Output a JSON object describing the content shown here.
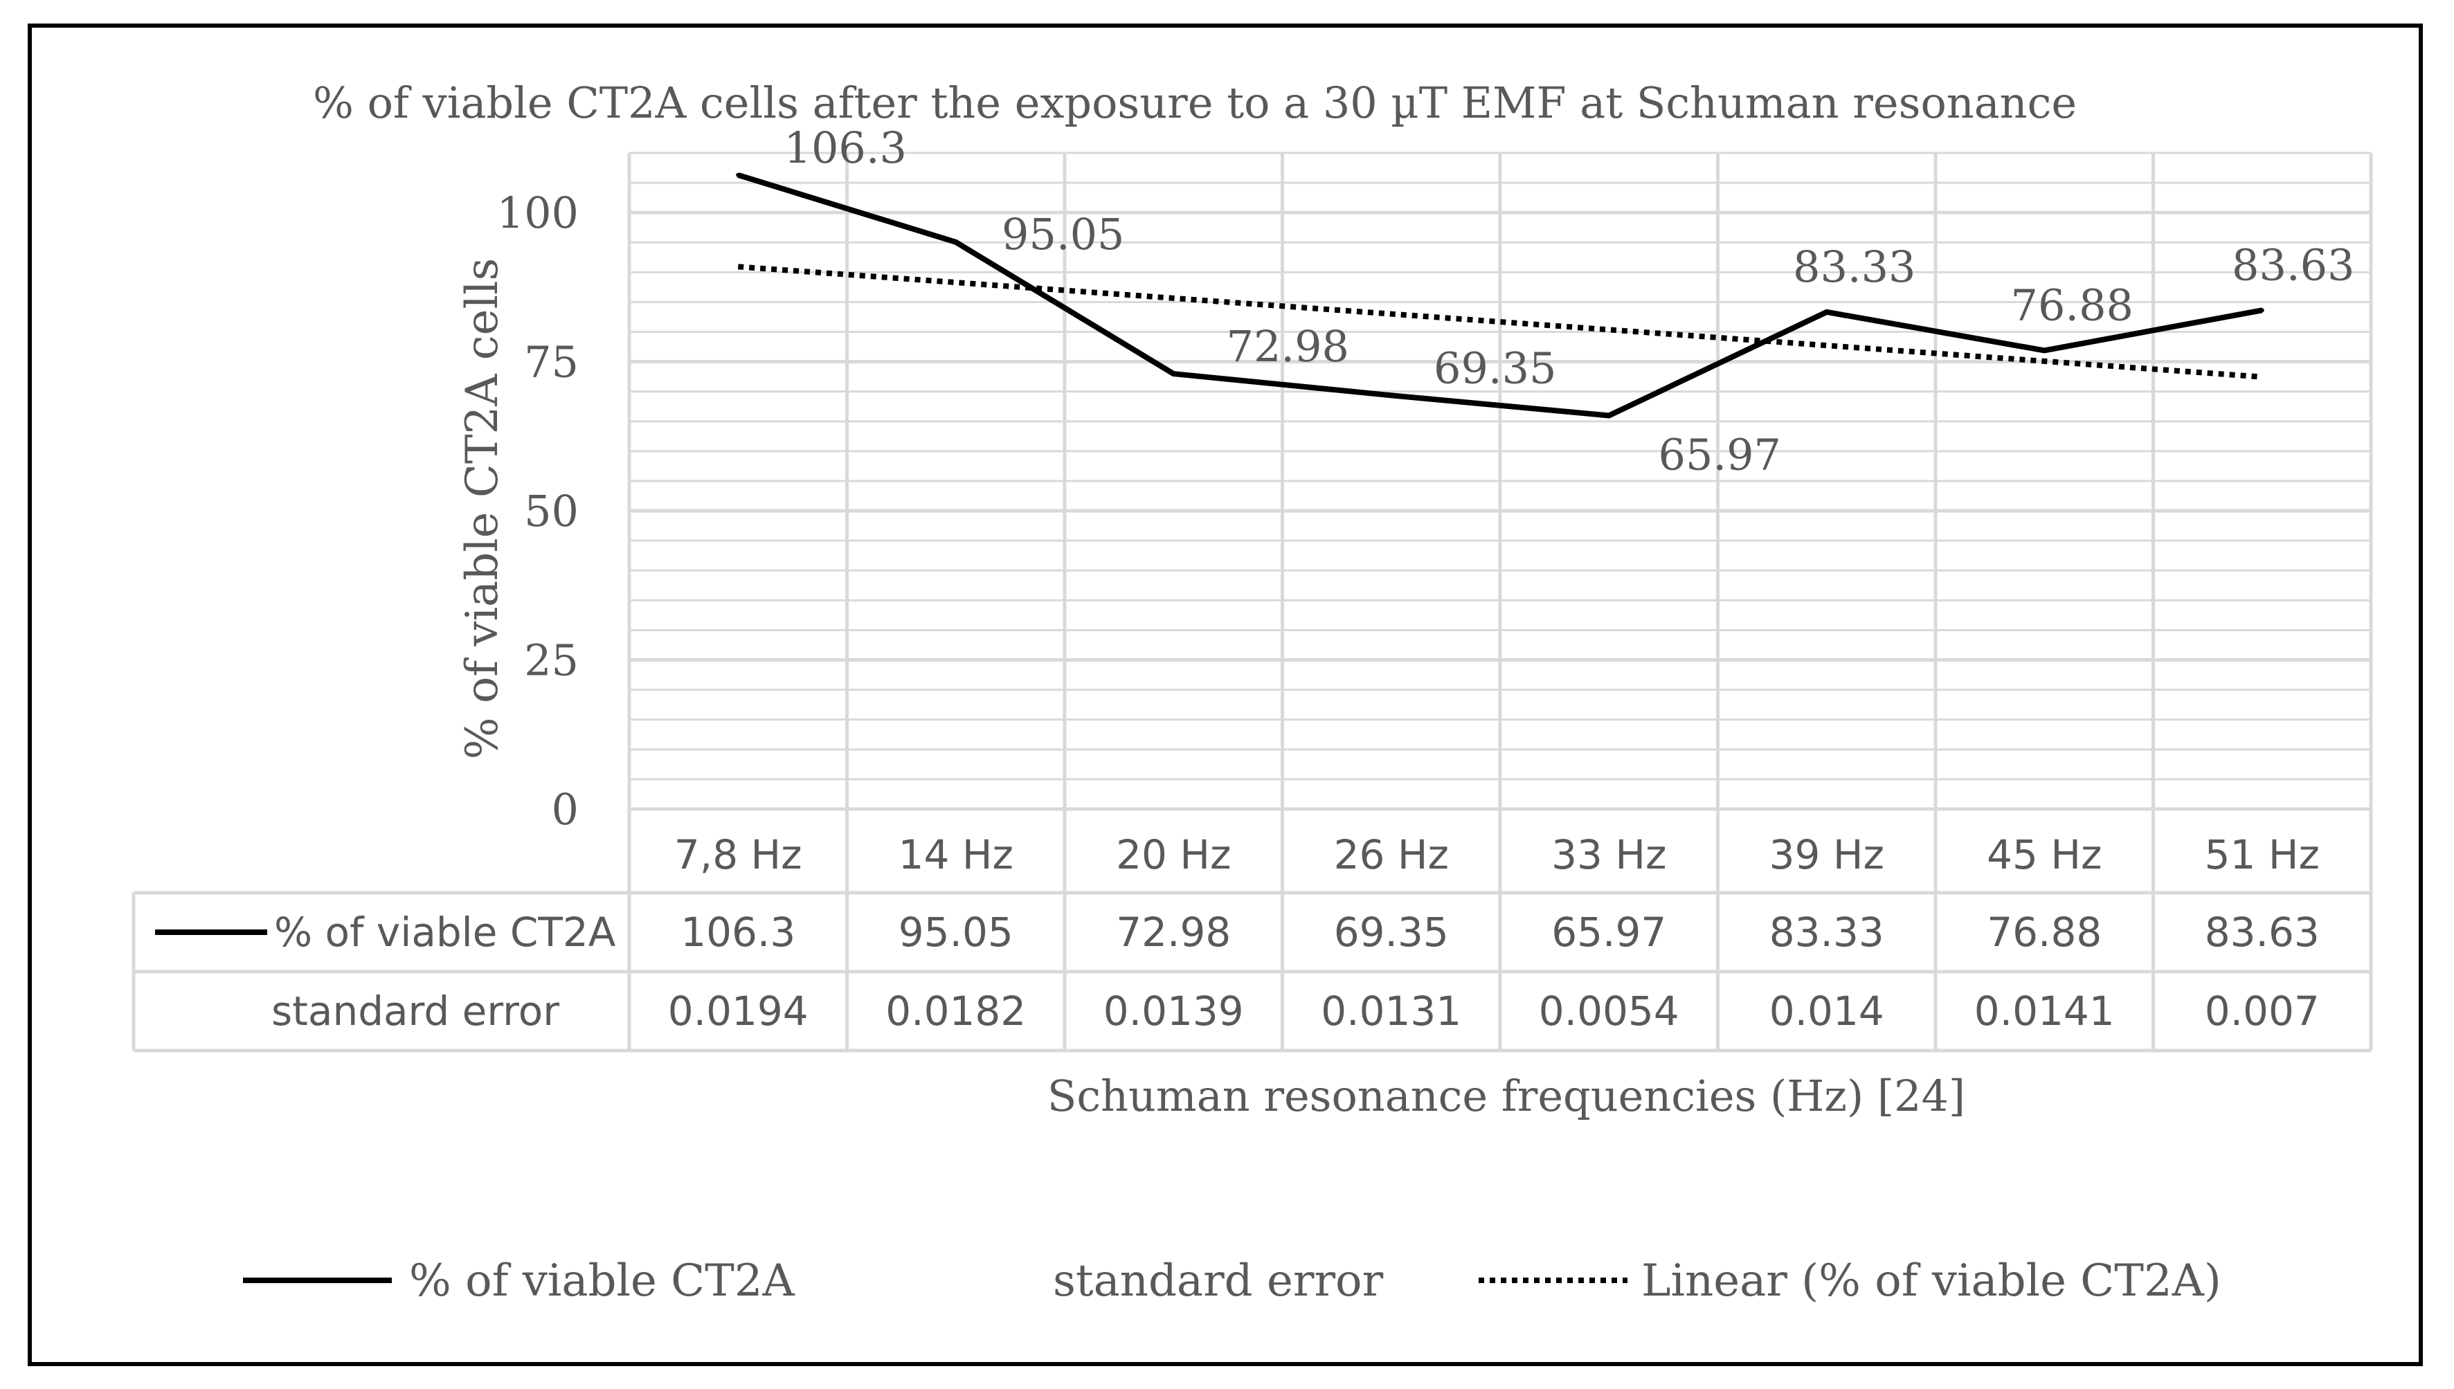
{
  "chart_data": {
    "type": "line",
    "title": "% of viable CT2A cells after the exposure to a 30 µT EMF at Schuman resonance",
    "xlabel": "Schuman resonance frequencies (Hz) [24]",
    "ylabel": "% of viable CT2A cells",
    "ylim": [
      0,
      110
    ],
    "yticks": [
      0,
      25,
      50,
      75,
      100
    ],
    "y_minor_step": 5,
    "categories": [
      "7,8 Hz",
      "14 Hz",
      "20 Hz",
      "26 Hz",
      "33 Hz",
      "39 Hz",
      "45 Hz",
      "51 Hz"
    ],
    "series": [
      {
        "name": "% of viable CT2A",
        "values": [
          106.3,
          95.05,
          72.98,
          69.35,
          65.97,
          83.33,
          76.88,
          83.63
        ],
        "labels": [
          "106.3",
          "95.05",
          "72.98",
          "69.35",
          "65.97",
          "83.33",
          "76.88",
          "83.63"
        ],
        "color": "#000000",
        "style": "solid"
      },
      {
        "name": "standard error",
        "values": [
          "0.0194",
          "0.0182",
          "0.0139",
          "0.0131",
          "0.0054",
          "0.014",
          "0.0141",
          "0.007"
        ]
      }
    ],
    "trendline": {
      "name": "Linear (% of viable CT2A)",
      "type": "linear",
      "style": "dotted",
      "color": "#000000"
    },
    "data_table": {
      "rows": [
        {
          "label": "% of viable CT2A",
          "values": [
            "106.3",
            "95.05",
            "72.98",
            "69.35",
            "65.97",
            "83.33",
            "76.88",
            "83.63"
          ]
        },
        {
          "label": "standard error",
          "values": [
            "0.0194",
            "0.0182",
            "0.0139",
            "0.0131",
            "0.0054",
            "0.014",
            "0.0141",
            "0.007"
          ]
        }
      ]
    },
    "legend": {
      "position": "bottom",
      "entries": [
        "% of viable CT2A",
        "standard error",
        "Linear (% of viable CT2A)"
      ]
    },
    "colors": {
      "grid": "#d9d9d9",
      "text": "#595959",
      "line": "#000000",
      "frame": "#000000"
    }
  }
}
